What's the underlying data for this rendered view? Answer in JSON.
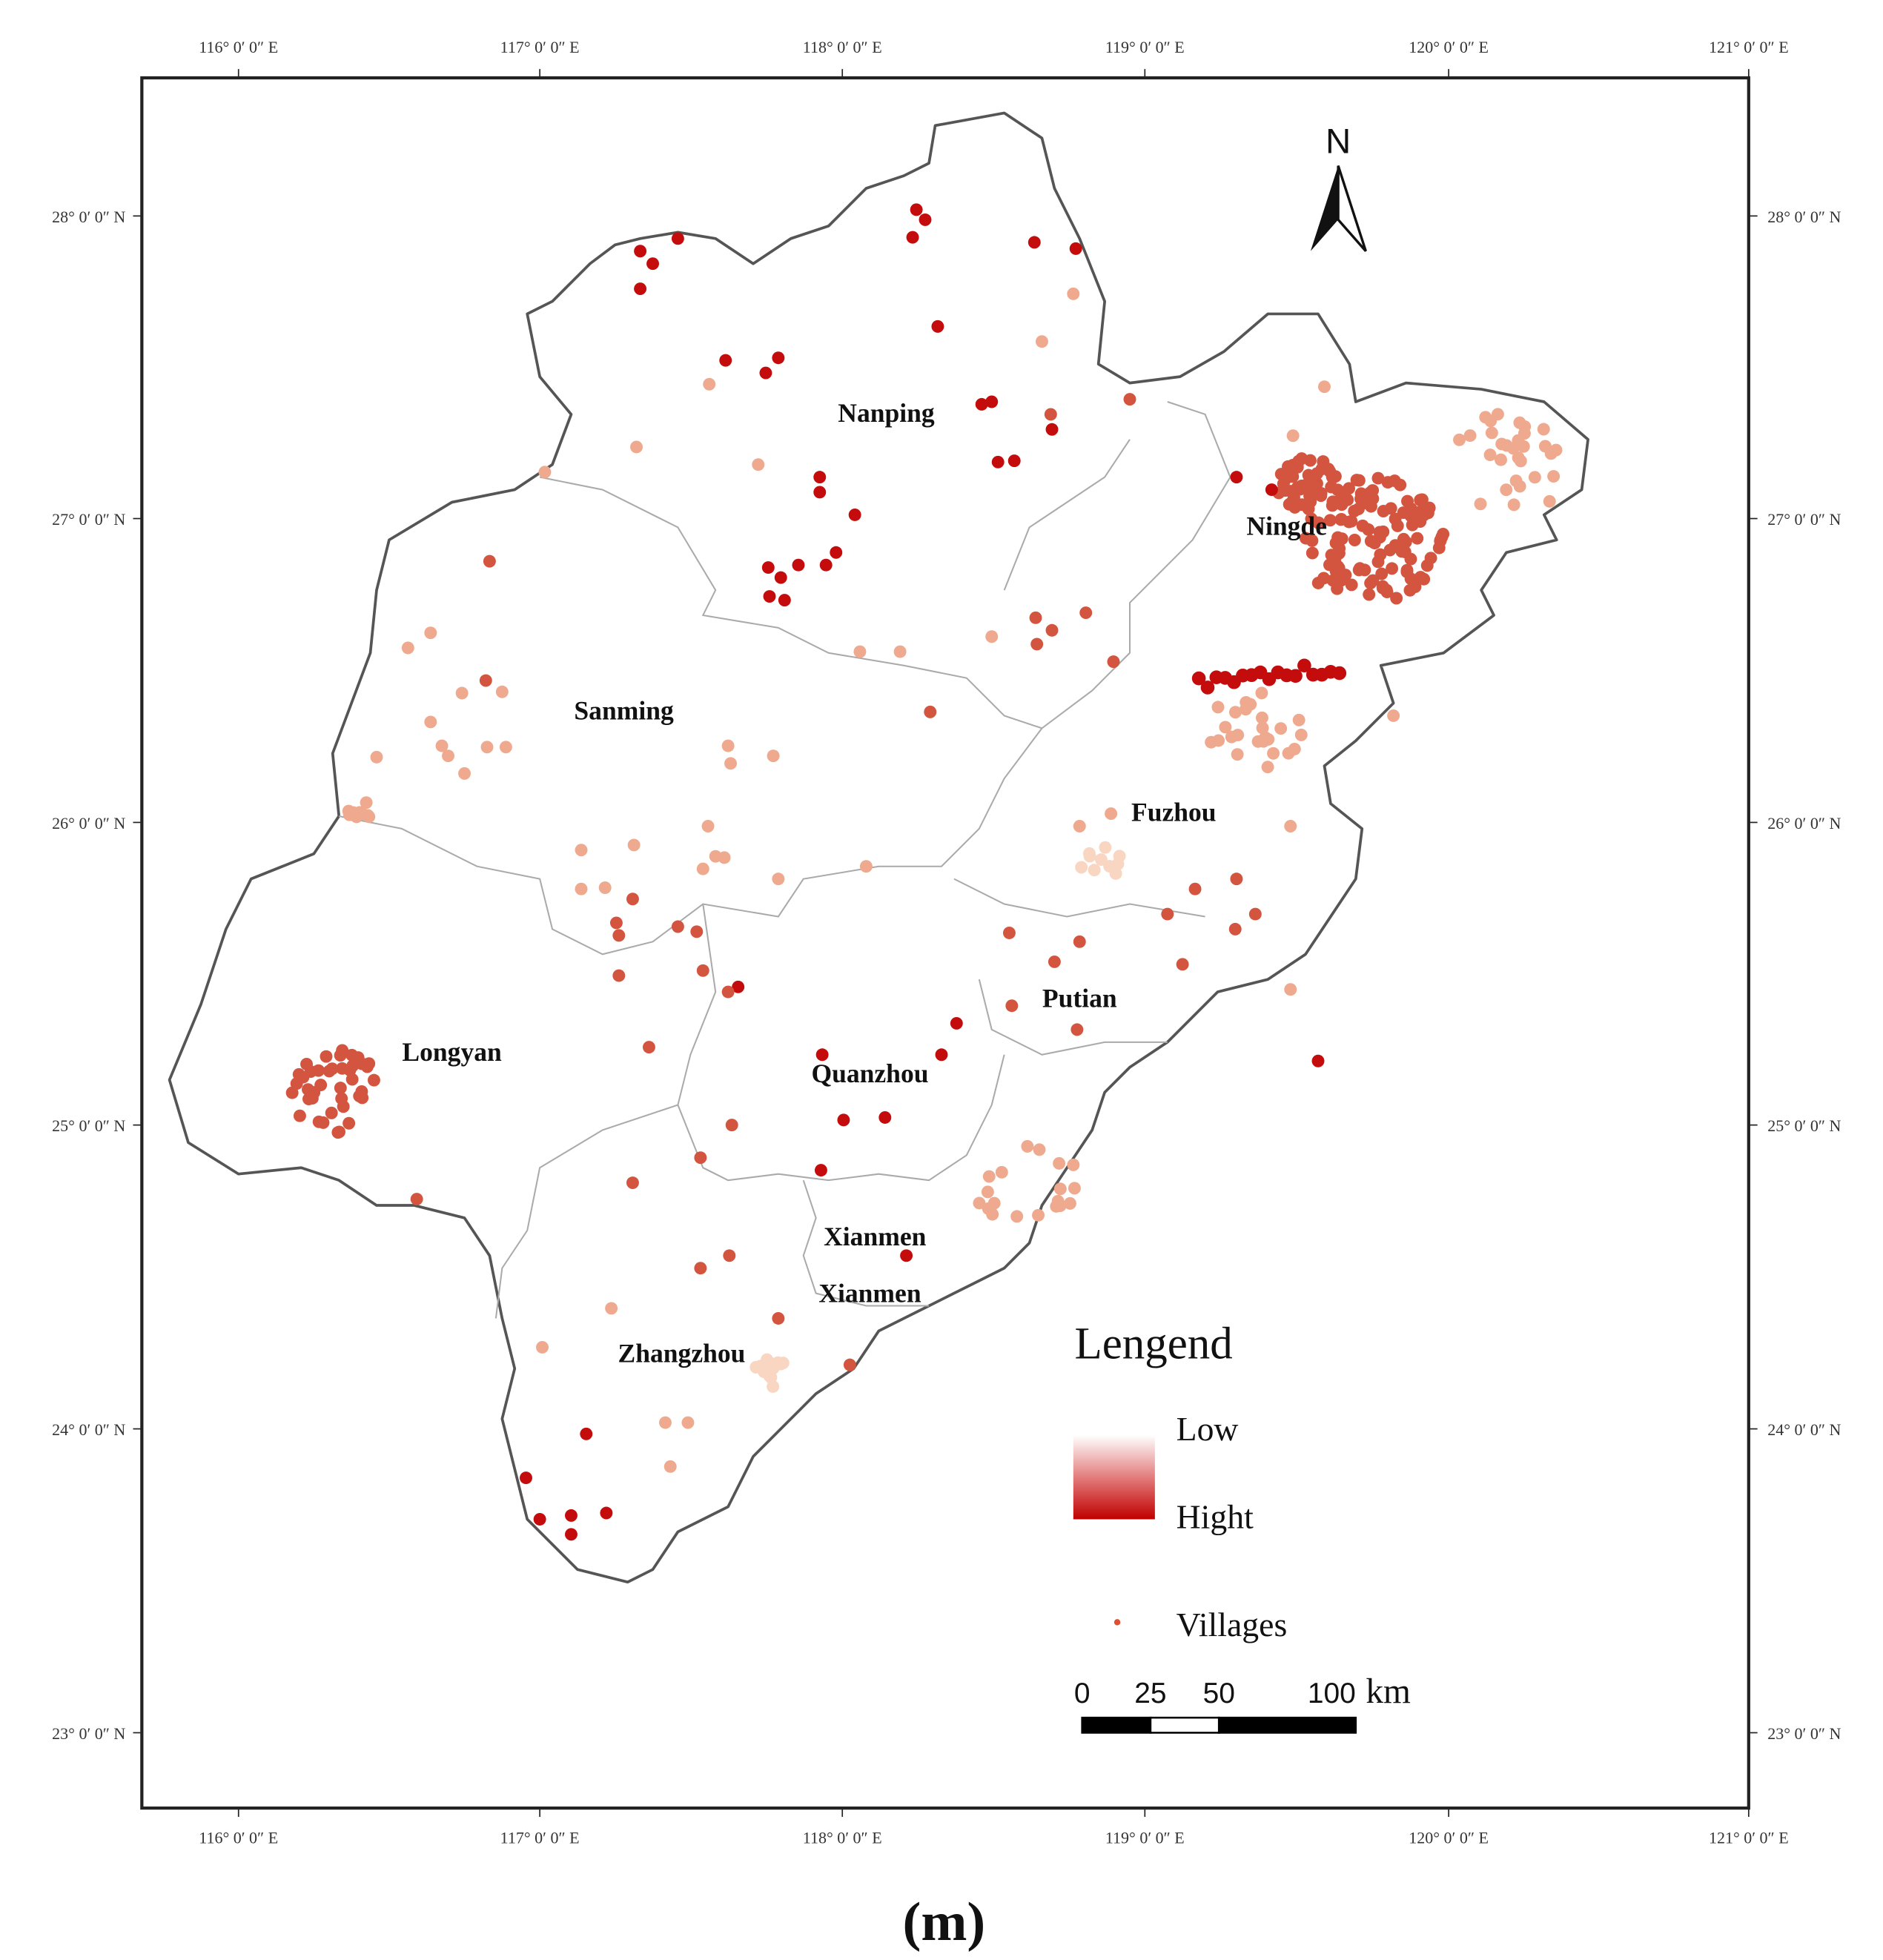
{
  "map": {
    "longitude_labels": [
      "116° 0′ 0″ E",
      "117° 0′ 0″ E",
      "118° 0′ 0″ E",
      "119° 0′ 0″ E",
      "120° 0′ 0″ E",
      "121° 0′ 0″ E"
    ],
    "latitude_labels": [
      "28° 0′ 0″ N",
      "27° 0′ 0″ N",
      "26° 0′ 0″ N",
      "25° 0′ 0″ N",
      "24° 0′ 0″ N",
      "23° 0′ 0″ N"
    ],
    "north": "N",
    "regions": [
      "Nanping",
      "Ningde",
      "Sanming",
      "Fuzhou",
      "Putian",
      "Longyan",
      "Quanzhou",
      "Xianmen",
      "Xianmen",
      "Zhangzhou"
    ],
    "legend": {
      "title": "Lengend",
      "low": "Low",
      "high": "Hight",
      "villages": "Villages"
    },
    "scale_bar": {
      "labels": [
        0,
        25,
        50,
        100
      ],
      "unit": "km"
    },
    "caption": "(m)"
  }
}
